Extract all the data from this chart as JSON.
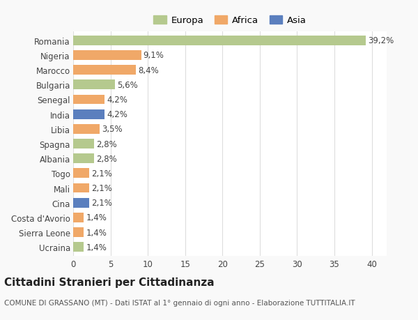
{
  "categories": [
    "Romania",
    "Nigeria",
    "Marocco",
    "Bulgaria",
    "Senegal",
    "India",
    "Libia",
    "Spagna",
    "Albania",
    "Togo",
    "Mali",
    "Cina",
    "Costa d'Avorio",
    "Sierra Leone",
    "Ucraina"
  ],
  "values": [
    39.2,
    9.1,
    8.4,
    5.6,
    4.2,
    4.2,
    3.5,
    2.8,
    2.8,
    2.1,
    2.1,
    2.1,
    1.4,
    1.4,
    1.4
  ],
  "labels": [
    "39,2%",
    "9,1%",
    "8,4%",
    "5,6%",
    "4,2%",
    "4,2%",
    "3,5%",
    "2,8%",
    "2,8%",
    "2,1%",
    "2,1%",
    "2,1%",
    "1,4%",
    "1,4%",
    "1,4%"
  ],
  "continents": [
    "Europa",
    "Africa",
    "Africa",
    "Europa",
    "Africa",
    "Asia",
    "Africa",
    "Europa",
    "Europa",
    "Africa",
    "Africa",
    "Asia",
    "Africa",
    "Africa",
    "Europa"
  ],
  "colors": {
    "Europa": "#b5c98e",
    "Africa": "#f0a868",
    "Asia": "#5b7fbe"
  },
  "xlim": [
    0,
    42
  ],
  "xticks": [
    0,
    5,
    10,
    15,
    20,
    25,
    30,
    35,
    40
  ],
  "title": "Cittadini Stranieri per Cittadinanza",
  "subtitle": "COMUNE DI GRASSANO (MT) - Dati ISTAT al 1° gennaio di ogni anno - Elaborazione TUTTITALIA.IT",
  "bg_color": "#f9f9f9",
  "plot_bg_color": "#ffffff",
  "grid_color": "#dddddd",
  "bar_height": 0.65,
  "label_fontsize": 8.5,
  "tick_fontsize": 8.5,
  "title_fontsize": 11,
  "subtitle_fontsize": 7.5
}
